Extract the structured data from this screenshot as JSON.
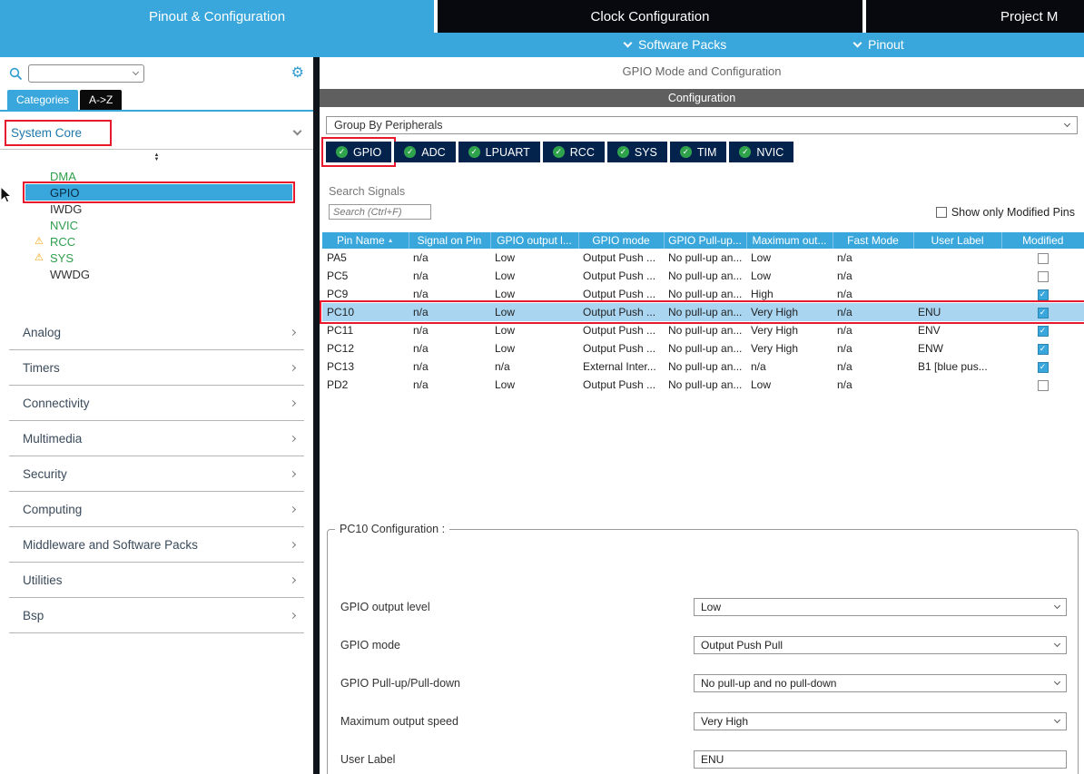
{
  "header": {
    "tabs": [
      {
        "label": "Pinout & Configuration",
        "active": true
      },
      {
        "label": "Clock Configuration",
        "active": false
      },
      {
        "label": "Project M",
        "active": false
      }
    ],
    "subnav": [
      {
        "label": "Software Packs"
      },
      {
        "label": "Pinout"
      }
    ]
  },
  "sidebar": {
    "search": {
      "value": ""
    },
    "tabs": [
      {
        "label": "Categories",
        "active": true
      },
      {
        "label": "A->Z",
        "active": false
      }
    ],
    "system_core": {
      "label": "System Core",
      "items": [
        {
          "label": "DMA",
          "color": "green"
        },
        {
          "label": "GPIO",
          "color": "green",
          "selected": true
        },
        {
          "label": "IWDG",
          "color": "default"
        },
        {
          "label": "NVIC",
          "color": "green"
        },
        {
          "label": "RCC",
          "color": "green",
          "warning": true
        },
        {
          "label": "SYS",
          "color": "green",
          "warning": true
        },
        {
          "label": "WWDG",
          "color": "default"
        }
      ]
    },
    "sections": [
      "Analog",
      "Timers",
      "Connectivity",
      "Multimedia",
      "Security",
      "Computing",
      "Middleware and Software Packs",
      "Utilities",
      "Bsp"
    ]
  },
  "main": {
    "title": "GPIO Mode and Configuration",
    "config_bar_label": "Configuration",
    "group_by": "Group By Peripherals",
    "peripheral_tabs": [
      {
        "label": "GPIO",
        "annotated": true,
        "active": true
      },
      {
        "label": "ADC"
      },
      {
        "label": "LPUART"
      },
      {
        "label": "RCC"
      },
      {
        "label": "SYS"
      },
      {
        "label": "TIM"
      },
      {
        "label": "NVIC"
      }
    ],
    "search_label": "Search Signals",
    "search_placeholder": "Search (Ctrl+F)",
    "search_value": "",
    "show_modified_label": "Show only Modified Pins",
    "show_modified_checked": false,
    "table": {
      "headers": [
        "Pin Name",
        "Signal on Pin",
        "GPIO output l...",
        "GPIO mode",
        "GPIO Pull-up...",
        "Maximum out...",
        "Fast Mode",
        "User Label",
        "Modified"
      ],
      "rows": [
        {
          "cells": [
            "PA5",
            "n/a",
            "Low",
            "Output Push ...",
            "No pull-up an...",
            "Low",
            "n/a",
            ""
          ],
          "modified": false
        },
        {
          "cells": [
            "PC5",
            "n/a",
            "Low",
            "Output Push ...",
            "No pull-up an...",
            "Low",
            "n/a",
            ""
          ],
          "modified": false
        },
        {
          "cells": [
            "PC9",
            "n/a",
            "Low",
            "Output Push ...",
            "No pull-up an...",
            "High",
            "n/a",
            ""
          ],
          "modified": true
        },
        {
          "cells": [
            "PC10",
            "n/a",
            "Low",
            "Output Push ...",
            "No pull-up an...",
            "Very High",
            "n/a",
            "ENU"
          ],
          "modified": true,
          "selected": true,
          "annotated": true
        },
        {
          "cells": [
            "PC11",
            "n/a",
            "Low",
            "Output Push ...",
            "No pull-up an...",
            "Very High",
            "n/a",
            "ENV"
          ],
          "modified": true
        },
        {
          "cells": [
            "PC12",
            "n/a",
            "Low",
            "Output Push ...",
            "No pull-up an...",
            "Very High",
            "n/a",
            "ENW"
          ],
          "modified": true
        },
        {
          "cells": [
            "PC13",
            "n/a",
            "n/a",
            "External Inter...",
            "No pull-up an...",
            "n/a",
            "n/a",
            "B1 [blue pus..."
          ],
          "modified": true
        },
        {
          "cells": [
            "PD2",
            "n/a",
            "Low",
            "Output Push ...",
            "No pull-up an...",
            "Low",
            "n/a",
            ""
          ],
          "modified": false
        }
      ]
    },
    "pc10_config": {
      "title": "PC10 Configuration :",
      "fields": [
        {
          "label": "GPIO output level",
          "value": "Low",
          "type": "select"
        },
        {
          "label": "GPIO mode",
          "value": "Output Push Pull",
          "type": "select"
        },
        {
          "label": "GPIO Pull-up/Pull-down",
          "value": "No pull-up and no pull-down",
          "type": "select"
        },
        {
          "label": "Maximum output speed",
          "value": "Very High",
          "type": "select"
        },
        {
          "label": "User Label",
          "value": "ENU",
          "type": "text"
        }
      ]
    }
  },
  "icons": {
    "check": "✓",
    "warning": "⚠",
    "gear": "⚙",
    "sort_asc": "▲",
    "scroll_up": "▲",
    "scroll_down": "▼"
  },
  "colors": {
    "accent_blue": "#39A7DC",
    "tab_dark": "#07090F",
    "peripheral_tab_navy": "#04234C",
    "selected_row_blue": "#A9D5F0",
    "sidebar_green": "#2F9E4C",
    "warning_yellow": "#F0A30A",
    "annotation_red": "#E8192C",
    "config_bar_gray": "#5F5F5F"
  }
}
